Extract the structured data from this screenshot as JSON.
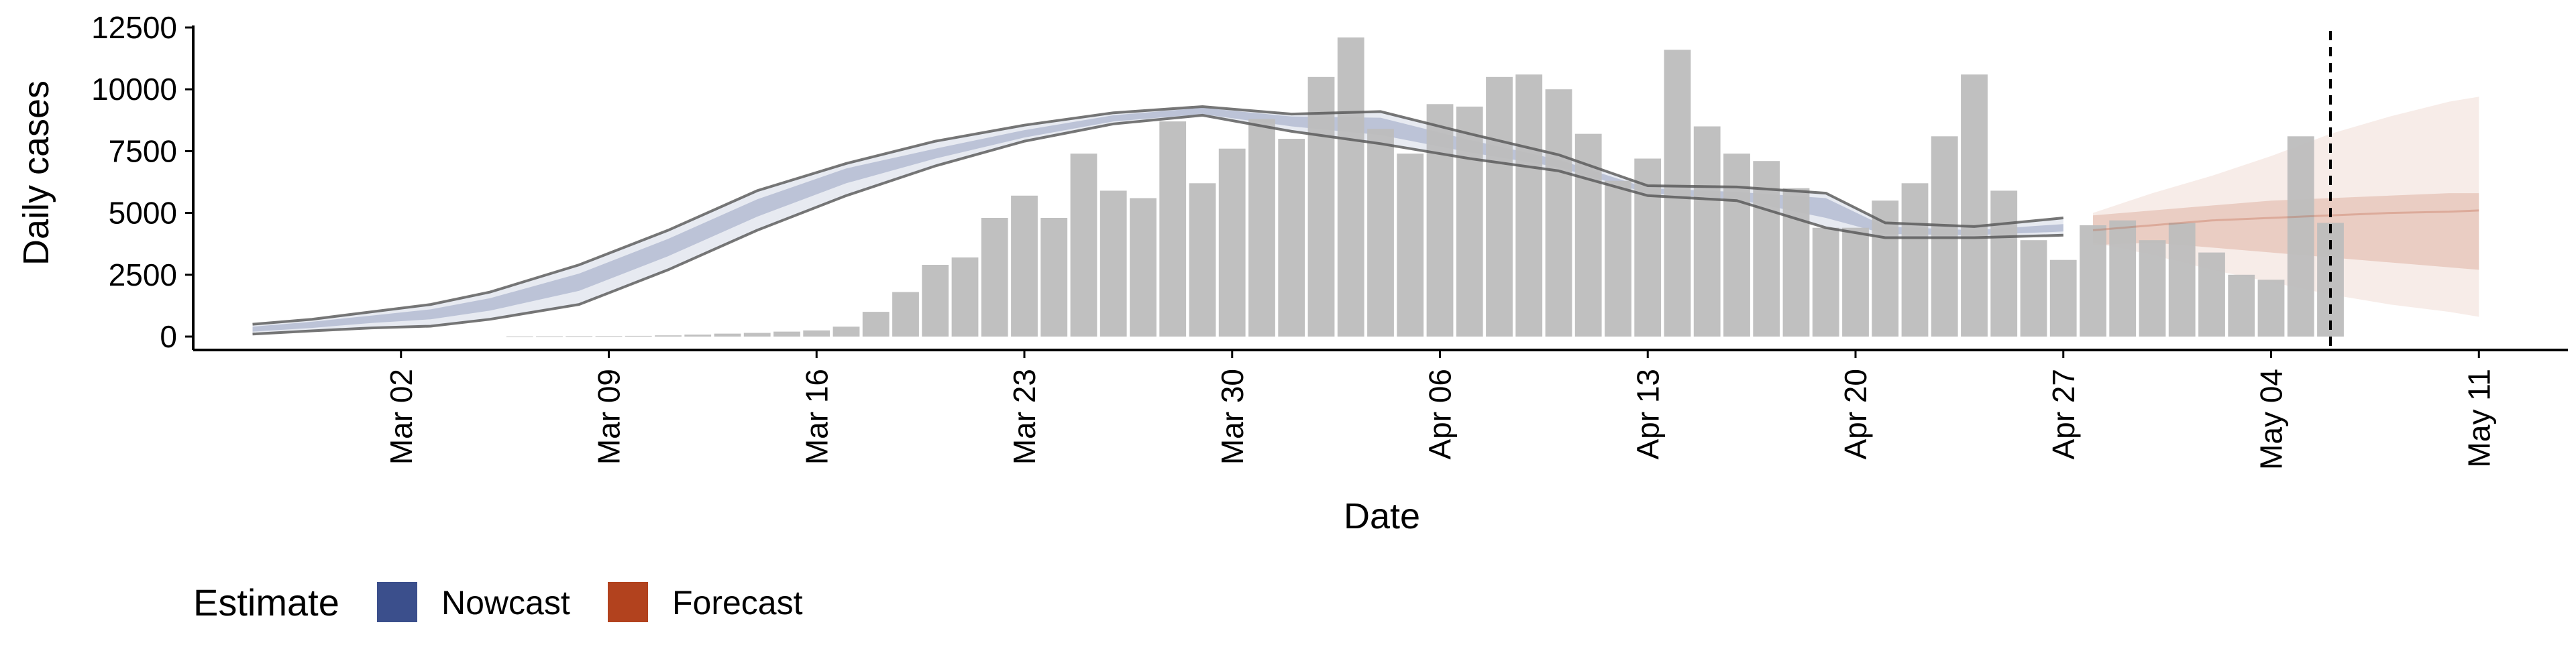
{
  "chart_data": {
    "type": "bar",
    "title": "",
    "xlabel": "Date",
    "ylabel": "Daily cases",
    "ylim": [
      0,
      12500
    ],
    "xlim": [
      "2020-02-24",
      "2020-05-14"
    ],
    "y_ticks": [
      0,
      2500,
      5000,
      7500,
      10000,
      12500
    ],
    "y_tick_labels": [
      "0",
      "2500",
      "5000",
      "7500",
      "10000",
      "12500"
    ],
    "x_ticks": [
      "2020-03-02",
      "2020-03-09",
      "2020-03-16",
      "2020-03-23",
      "2020-03-30",
      "2020-04-06",
      "2020-04-13",
      "2020-04-20",
      "2020-04-27",
      "2020-05-04",
      "2020-05-11"
    ],
    "x_tick_labels": [
      "Mar 02",
      "Mar 09",
      "Mar 16",
      "Mar 23",
      "Mar 30",
      "Apr 06",
      "Apr 13",
      "Apr 20",
      "Apr 27",
      "May 04",
      "May 11"
    ],
    "reference_line_date": "2020-05-06",
    "grid": false,
    "bar_color": "#bdbdbd",
    "observed_cases": {
      "dates": [
        "2020-03-06",
        "2020-03-07",
        "2020-03-08",
        "2020-03-09",
        "2020-03-10",
        "2020-03-11",
        "2020-03-12",
        "2020-03-13",
        "2020-03-14",
        "2020-03-15",
        "2020-03-16",
        "2020-03-17",
        "2020-03-18",
        "2020-03-19",
        "2020-03-20",
        "2020-03-21",
        "2020-03-22",
        "2020-03-23",
        "2020-03-24",
        "2020-03-25",
        "2020-03-26",
        "2020-03-27",
        "2020-03-28",
        "2020-03-29",
        "2020-03-30",
        "2020-03-31",
        "2020-04-01",
        "2020-04-02",
        "2020-04-03",
        "2020-04-04",
        "2020-04-05",
        "2020-04-06",
        "2020-04-07",
        "2020-04-08",
        "2020-04-09",
        "2020-04-10",
        "2020-04-11",
        "2020-04-12",
        "2020-04-13",
        "2020-04-14",
        "2020-04-15",
        "2020-04-16",
        "2020-04-17",
        "2020-04-18",
        "2020-04-19",
        "2020-04-20",
        "2020-04-21",
        "2020-04-22",
        "2020-04-23",
        "2020-04-24",
        "2020-04-25",
        "2020-04-26",
        "2020-04-27",
        "2020-04-28",
        "2020-04-29",
        "2020-04-30",
        "2020-05-01",
        "2020-05-02",
        "2020-05-03",
        "2020-05-04",
        "2020-05-05",
        "2020-05-06"
      ],
      "values": [
        5,
        10,
        15,
        20,
        30,
        50,
        80,
        120,
        150,
        200,
        250,
        400,
        1000,
        1800,
        2900,
        3200,
        4800,
        5700,
        4800,
        7400,
        5900,
        5600,
        8700,
        6200,
        7600,
        8800,
        8000,
        10500,
        12100,
        8400,
        7400,
        9400,
        9300,
        10500,
        10600,
        10000,
        8200,
        6300,
        7200,
        11600,
        8500,
        7400,
        7100,
        6000,
        4400,
        4400,
        5500,
        6200,
        8100,
        10600,
        5900,
        3900,
        3100,
        4500,
        4700,
        3900,
        4600,
        3400,
        2500,
        2300,
        8100,
        4600
      ]
    },
    "series": [
      {
        "name": "Nowcast",
        "color": "#3b4f8c",
        "dates": [
          "2020-02-26",
          "2020-02-28",
          "2020-03-01",
          "2020-03-03",
          "2020-03-05",
          "2020-03-08",
          "2020-03-11",
          "2020-03-14",
          "2020-03-17",
          "2020-03-20",
          "2020-03-23",
          "2020-03-26",
          "2020-03-29",
          "2020-04-01",
          "2020-04-04",
          "2020-04-07",
          "2020-04-10",
          "2020-04-13",
          "2020-04-16",
          "2020-04-19",
          "2020-04-21",
          "2020-04-24",
          "2020-04-27"
        ],
        "median": [
          300,
          450,
          700,
          900,
          1300,
          2200,
          3600,
          5200,
          6500,
          7400,
          8200,
          8800,
          9100,
          8700,
          8500,
          7700,
          7000,
          5900,
          5700,
          5200,
          4300,
          4200,
          4400
        ],
        "inner_lower": [
          200,
          350,
          550,
          700,
          1050,
          1850,
          3250,
          4850,
          6200,
          7200,
          8050,
          8700,
          9000,
          8500,
          8150,
          7450,
          6850,
          5800,
          5550,
          4800,
          4150,
          4100,
          4250
        ],
        "inner_upper": [
          400,
          600,
          850,
          1100,
          1550,
          2550,
          3950,
          5550,
          6800,
          7600,
          8350,
          8950,
          9250,
          8900,
          8850,
          7950,
          7150,
          6000,
          5850,
          5600,
          4450,
          4300,
          4550
        ],
        "outer_lower": [
          100,
          230,
          350,
          420,
          700,
          1300,
          2700,
          4300,
          5700,
          6900,
          7900,
          8600,
          8950,
          8300,
          7800,
          7200,
          6700,
          5700,
          5500,
          4400,
          4000,
          4000,
          4100
        ],
        "outer_upper": [
          500,
          700,
          1000,
          1300,
          1800,
          2900,
          4300,
          5900,
          7000,
          7900,
          8550,
          9050,
          9300,
          9000,
          9100,
          8200,
          7350,
          6100,
          6050,
          5800,
          4600,
          4450,
          4800
        ]
      },
      {
        "name": "Forecast",
        "color": "#b2421e",
        "dates": [
          "2020-04-28",
          "2020-04-30",
          "2020-05-02",
          "2020-05-04",
          "2020-05-06",
          "2020-05-08",
          "2020-05-10",
          "2020-05-11"
        ],
        "median": [
          4300,
          4500,
          4700,
          4800,
          4900,
          5000,
          5050,
          5100
        ],
        "inner_lower": [
          3700,
          3800,
          3600,
          3400,
          3200,
          3000,
          2800,
          2700
        ],
        "inner_upper": [
          4900,
          5100,
          5300,
          5500,
          5600,
          5700,
          5800,
          5800
        ],
        "outer_lower": [
          3800,
          3300,
          2700,
          2200,
          1700,
          1300,
          1000,
          800
        ],
        "outer_upper": [
          5000,
          5800,
          6500,
          7300,
          8200,
          8900,
          9500,
          9700
        ]
      }
    ],
    "legend": {
      "title": "Estimate",
      "position": "bottom-left",
      "items": [
        {
          "label": "Nowcast",
          "color": "#3b4f8c"
        },
        {
          "label": "Forecast",
          "color": "#b2421e"
        }
      ]
    }
  }
}
